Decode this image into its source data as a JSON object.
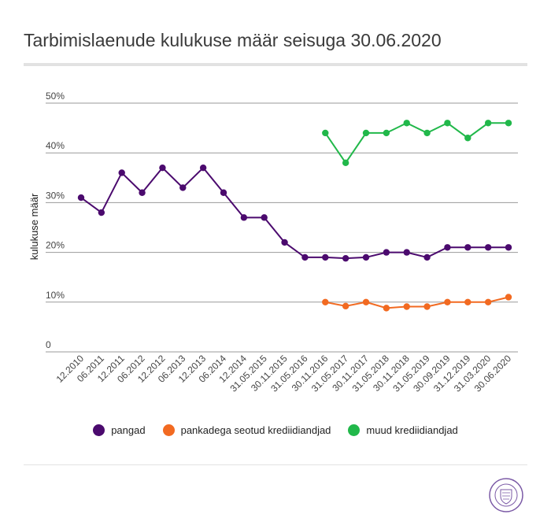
{
  "title": "Tarbimislaenude kulukuse määr seisuga 30.06.2020",
  "colors": {
    "pangad": "#4b0a6e",
    "pankadega": "#f26a21",
    "muud": "#21b84a",
    "grid": "#9a9a9a"
  },
  "seal_icon": "seal-logo-icon",
  "seal_text": "FINANTSINSPEKTSIOON",
  "chart_data": {
    "type": "line",
    "title": "Tarbimislaenude kulukuse määr seisuga 30.06.2020",
    "xlabel": "",
    "ylabel": "kulukuse määr",
    "ylim": [
      0,
      50
    ],
    "yticks": [
      "0",
      "10%",
      "20%",
      "30%",
      "40%",
      "50%"
    ],
    "grid": true,
    "legend_position": "bottom",
    "categories": [
      "12.2010",
      "06.2011",
      "12.2011",
      "06.2012",
      "12.2012",
      "06.2013",
      "12.2013",
      "06.2014",
      "12.2014",
      "31.05.2015",
      "30.11.2015",
      "31.05.2016",
      "30.11.2016",
      "31.05.2017",
      "30.11.2017",
      "31.05.2018",
      "30.11.2018",
      "31.05.2019",
      "30.09.2019",
      "31.12.2019",
      "31.03.2020",
      "30.06.2020"
    ],
    "series": [
      {
        "name": "pangad",
        "color": "#4b0a6e",
        "values": [
          31,
          28,
          36,
          32,
          37,
          33,
          37,
          32,
          27,
          27,
          22,
          19,
          19,
          18.8,
          19,
          20,
          20,
          19,
          21,
          21,
          21,
          21
        ]
      },
      {
        "name": "pankadega seotud krediidiandjad",
        "color": "#f26a21",
        "values": [
          null,
          null,
          null,
          null,
          null,
          null,
          null,
          null,
          null,
          null,
          null,
          null,
          10,
          9.2,
          10,
          8.8,
          9.1,
          9.1,
          10,
          10,
          10,
          11
        ]
      },
      {
        "name": "muud krediidiandjad",
        "color": "#21b84a",
        "values": [
          null,
          null,
          null,
          null,
          null,
          null,
          null,
          null,
          null,
          null,
          null,
          null,
          44,
          38,
          44,
          44,
          46,
          44,
          46,
          43,
          46,
          46
        ]
      }
    ]
  }
}
